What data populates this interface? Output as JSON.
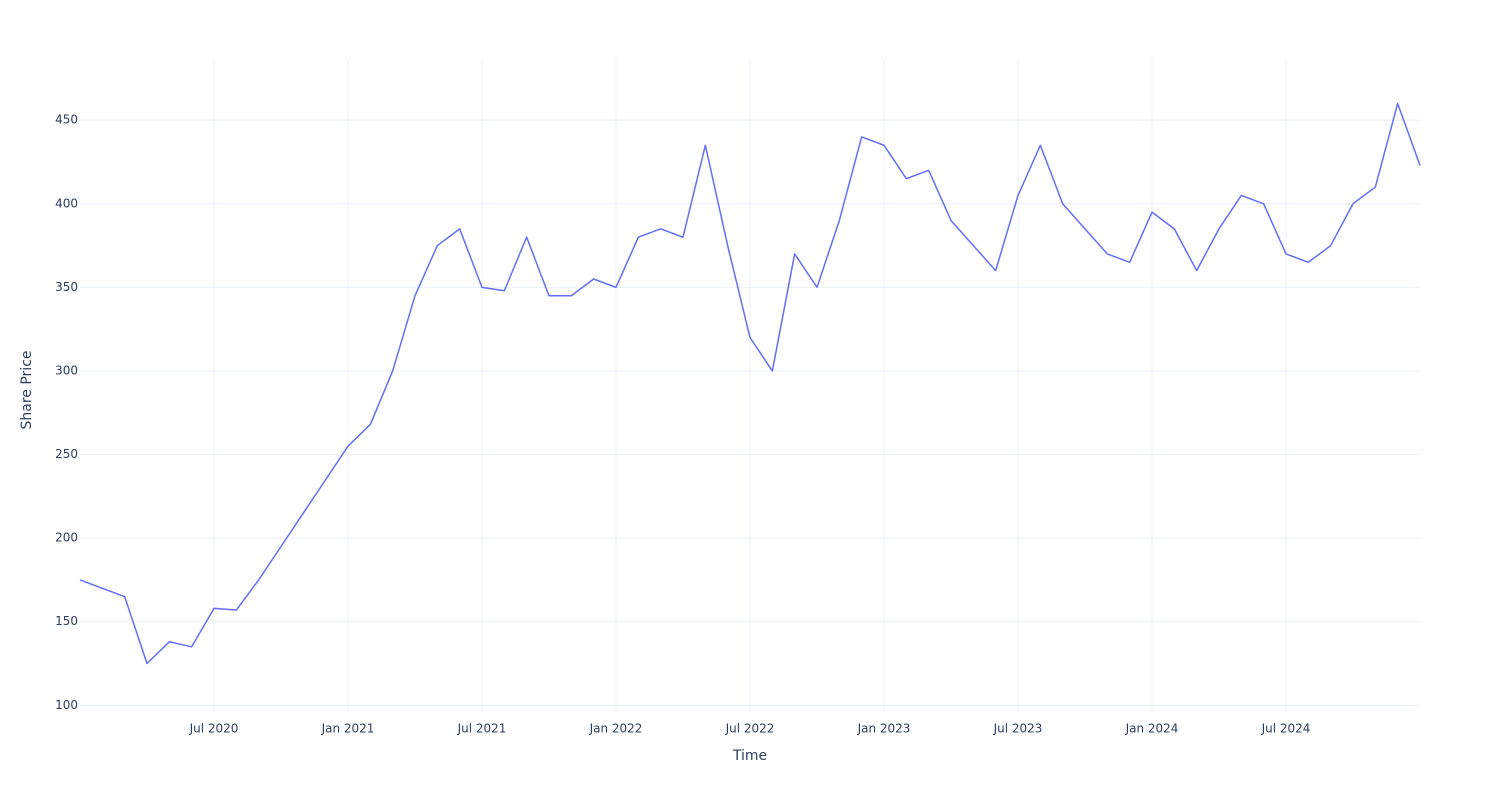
{
  "chart_data": {
    "type": "line",
    "x_label": "Time",
    "y_label": "Share Price",
    "x": [
      "2020-01",
      "2020-02",
      "2020-03",
      "2020-04",
      "2020-05",
      "2020-06",
      "2020-07",
      "2020-08",
      "2020-09",
      "2020-10",
      "2020-11",
      "2020-12",
      "2021-01",
      "2021-02",
      "2021-03",
      "2021-04",
      "2021-05",
      "2021-06",
      "2021-07",
      "2021-08",
      "2021-09",
      "2021-10",
      "2021-11",
      "2021-12",
      "2022-01",
      "2022-02",
      "2022-03",
      "2022-04",
      "2022-05",
      "2022-06",
      "2022-07",
      "2022-08",
      "2022-09",
      "2022-10",
      "2022-11",
      "2022-12",
      "2023-01",
      "2023-02",
      "2023-03",
      "2023-04",
      "2023-05",
      "2023-06",
      "2023-07",
      "2023-08",
      "2023-09",
      "2023-10",
      "2023-11",
      "2023-12",
      "2024-01",
      "2024-02",
      "2024-03",
      "2024-04",
      "2024-05",
      "2024-06",
      "2024-07",
      "2024-08",
      "2024-09",
      "2024-10",
      "2024-11",
      "2024-12",
      "2025-01"
    ],
    "series": [
      {
        "color": "#636efa",
        "values": [
          175,
          170,
          165,
          125,
          138,
          135,
          158,
          157,
          175,
          195,
          215,
          235,
          255,
          268,
          300,
          345,
          375,
          385,
          350,
          348,
          380,
          345,
          345,
          355,
          350,
          380,
          385,
          380,
          435,
          375,
          320,
          300,
          370,
          350,
          390,
          440,
          435,
          415,
          420,
          390,
          375,
          360,
          405,
          435,
          400,
          385,
          370,
          365,
          395,
          385,
          360,
          385,
          405,
          400,
          370,
          365,
          375,
          400,
          410,
          460,
          423
        ]
      }
    ],
    "xlim": [
      "2020-01",
      "2025-01"
    ],
    "xticks": [
      {
        "value": "2020-07",
        "label": "Jul 2020"
      },
      {
        "value": "2021-01",
        "label": "Jan 2021"
      },
      {
        "value": "2021-07",
        "label": "Jul 2021"
      },
      {
        "value": "2022-01",
        "label": "Jan 2022"
      },
      {
        "value": "2022-07",
        "label": "Jul 2022"
      },
      {
        "value": "2023-01",
        "label": "Jan 2023"
      },
      {
        "value": "2023-07",
        "label": "Jul 2023"
      },
      {
        "value": "2024-01",
        "label": "Jan 2024"
      },
      {
        "value": "2024-07",
        "label": "Jul 2024"
      }
    ],
    "ylim": [
      96,
      486
    ],
    "yticks": [
      100,
      150,
      200,
      250,
      300,
      350,
      400,
      450
    ],
    "grid": true
  }
}
